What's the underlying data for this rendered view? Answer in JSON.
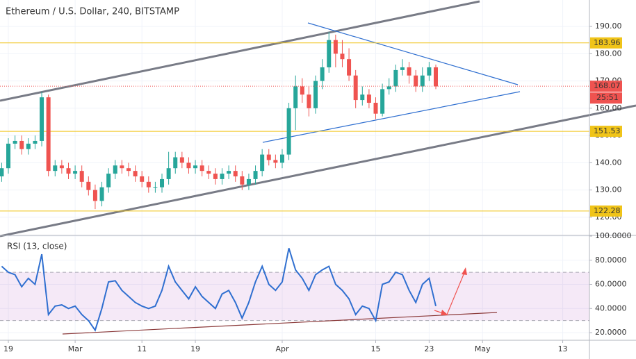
{
  "chart_data": [
    {
      "type": "candlestick",
      "title": "Ethereum / U.S. Dollar, 240, BITSTAMP",
      "up_color": "#26a69a",
      "down_color": "#ef5350",
      "x": [
        -1,
        0,
        1,
        2,
        3,
        4,
        5,
        6,
        7,
        8,
        9,
        10,
        11,
        12,
        13,
        14,
        15,
        16,
        17,
        18,
        19,
        20,
        21,
        22,
        23,
        24,
        25,
        26,
        27,
        28,
        29,
        30,
        31,
        32,
        33,
        34,
        35,
        36,
        37,
        38,
        39,
        40,
        41,
        42,
        43,
        44,
        45,
        46,
        47,
        48,
        49,
        50,
        51,
        52,
        53,
        54,
        55,
        56,
        57,
        58,
        59,
        60,
        61,
        62,
        63,
        64
      ],
      "open": [
        135,
        138,
        147,
        148,
        145,
        147,
        148,
        164,
        137,
        139,
        138,
        136,
        137,
        133,
        130,
        126,
        131,
        136,
        139,
        138,
        137,
        135,
        133,
        131,
        131,
        134,
        138,
        142,
        140,
        138,
        139,
        137,
        136,
        134,
        136,
        137,
        135,
        132,
        134,
        137,
        143,
        141,
        140,
        143,
        160,
        168,
        165,
        160,
        170,
        175,
        185,
        180,
        178,
        172,
        163,
        165,
        162,
        158,
        167,
        168,
        174,
        175,
        172,
        168,
        172,
        175
      ],
      "high": [
        140,
        149,
        150,
        150,
        149,
        150,
        166,
        165,
        141,
        141,
        140,
        139,
        139,
        135,
        132,
        133,
        138,
        141,
        141,
        140,
        139,
        137,
        135,
        133,
        136,
        144,
        144,
        144,
        142,
        141,
        141,
        139,
        138,
        138,
        139,
        139,
        137,
        136,
        139,
        145,
        145,
        143,
        145,
        162,
        172,
        171,
        168,
        172,
        178,
        188,
        187,
        185,
        182,
        174,
        168,
        167,
        164,
        169,
        171,
        176,
        178,
        177,
        174,
        175,
        177,
        176
      ],
      "low": [
        133,
        136,
        145,
        143,
        143,
        145,
        146,
        135,
        135,
        136,
        134,
        134,
        131,
        128,
        123,
        124,
        129,
        134,
        136,
        135,
        133,
        131,
        129,
        129,
        129,
        132,
        136,
        138,
        136,
        136,
        135,
        134,
        132,
        132,
        134,
        133,
        130,
        130,
        132,
        135,
        139,
        138,
        138,
        141,
        152,
        162,
        157,
        158,
        167,
        173,
        175,
        175,
        170,
        160,
        161,
        160,
        156,
        157,
        165,
        166,
        172,
        169,
        166,
        166,
        170,
        167
      ],
      "close": [
        138,
        147,
        148,
        145,
        147,
        148,
        164,
        137,
        139,
        138,
        136,
        137,
        133,
        130,
        126,
        131,
        136,
        139,
        138,
        137,
        135,
        133,
        131,
        131,
        134,
        138,
        142,
        140,
        138,
        139,
        137,
        136,
        134,
        136,
        137,
        135,
        132,
        134,
        137,
        143,
        141,
        140,
        143,
        160,
        168,
        165,
        160,
        170,
        175,
        185,
        180,
        178,
        172,
        163,
        165,
        162,
        158,
        167,
        168,
        174,
        175,
        172,
        168,
        172,
        175,
        168
      ],
      "xlim": [
        -1.25,
        87
      ],
      "ylim": [
        113.6,
        199.7
      ],
      "yticks": [
        {
          "value": 120,
          "label": "120.00"
        },
        {
          "value": 130,
          "label": "130.00"
        },
        {
          "value": 140,
          "label": "140.00"
        },
        {
          "value": 150,
          "label": "150.00"
        },
        {
          "value": 160,
          "label": "160.00"
        },
        {
          "value": 170,
          "label": "170.00"
        },
        {
          "value": 180,
          "label": "180.00"
        },
        {
          "value": 190,
          "label": "190.00"
        }
      ],
      "levels": [
        183.96,
        151.53,
        122.28
      ],
      "level_color": "#f0c419",
      "last_price": 168.07,
      "countdown": "25:51"
    },
    {
      "type": "line",
      "title": "RSI (13, close)",
      "color": "#2f6fd0",
      "x": [
        -1,
        0,
        1,
        2,
        3,
        4,
        5,
        6,
        7,
        8,
        9,
        10,
        11,
        12,
        13,
        14,
        15,
        16,
        17,
        18,
        19,
        20,
        21,
        22,
        23,
        24,
        25,
        26,
        27,
        28,
        29,
        30,
        31,
        32,
        33,
        34,
        35,
        36,
        37,
        38,
        39,
        40,
        41,
        42,
        43,
        44,
        45,
        46,
        47,
        48,
        49,
        50,
        51,
        52,
        53,
        54,
        55,
        56,
        57,
        58,
        59,
        60,
        61,
        62,
        63,
        64
      ],
      "values": [
        75,
        70,
        68,
        58,
        65,
        60,
        85,
        35,
        42,
        43,
        40,
        42,
        35,
        30,
        22,
        40,
        62,
        63,
        55,
        50,
        45,
        42,
        40,
        42,
        55,
        75,
        62,
        55,
        48,
        58,
        50,
        45,
        40,
        52,
        55,
        45,
        32,
        45,
        62,
        75,
        60,
        55,
        62,
        90,
        72,
        65,
        55,
        68,
        72,
        75,
        60,
        55,
        48,
        35,
        42,
        40,
        30,
        60,
        62,
        70,
        68,
        55,
        45,
        60,
        65,
        42
      ],
      "xlim": [
        -1.25,
        87
      ],
      "ylim": [
        13.7,
        100
      ],
      "yticks": [
        {
          "value": 20,
          "label": "20.0000"
        },
        {
          "value": 40,
          "label": "40.0000"
        },
        {
          "value": 60,
          "label": "60.0000"
        },
        {
          "value": 80,
          "label": "80.0000"
        },
        {
          "value": 100,
          "label": "100.0000"
        }
      ],
      "bands": [
        30,
        70
      ],
      "xticks": [
        {
          "value": 0,
          "label": "19"
        },
        {
          "value": 10,
          "label": "Mar"
        },
        {
          "value": 20,
          "label": "11"
        },
        {
          "value": 28,
          "label": "19"
        },
        {
          "value": 41,
          "label": "Apr"
        },
        {
          "value": 55,
          "label": "15"
        },
        {
          "value": 63,
          "label": "23"
        },
        {
          "value": 71,
          "label": "May"
        },
        {
          "value": 83,
          "label": "13"
        }
      ]
    }
  ]
}
